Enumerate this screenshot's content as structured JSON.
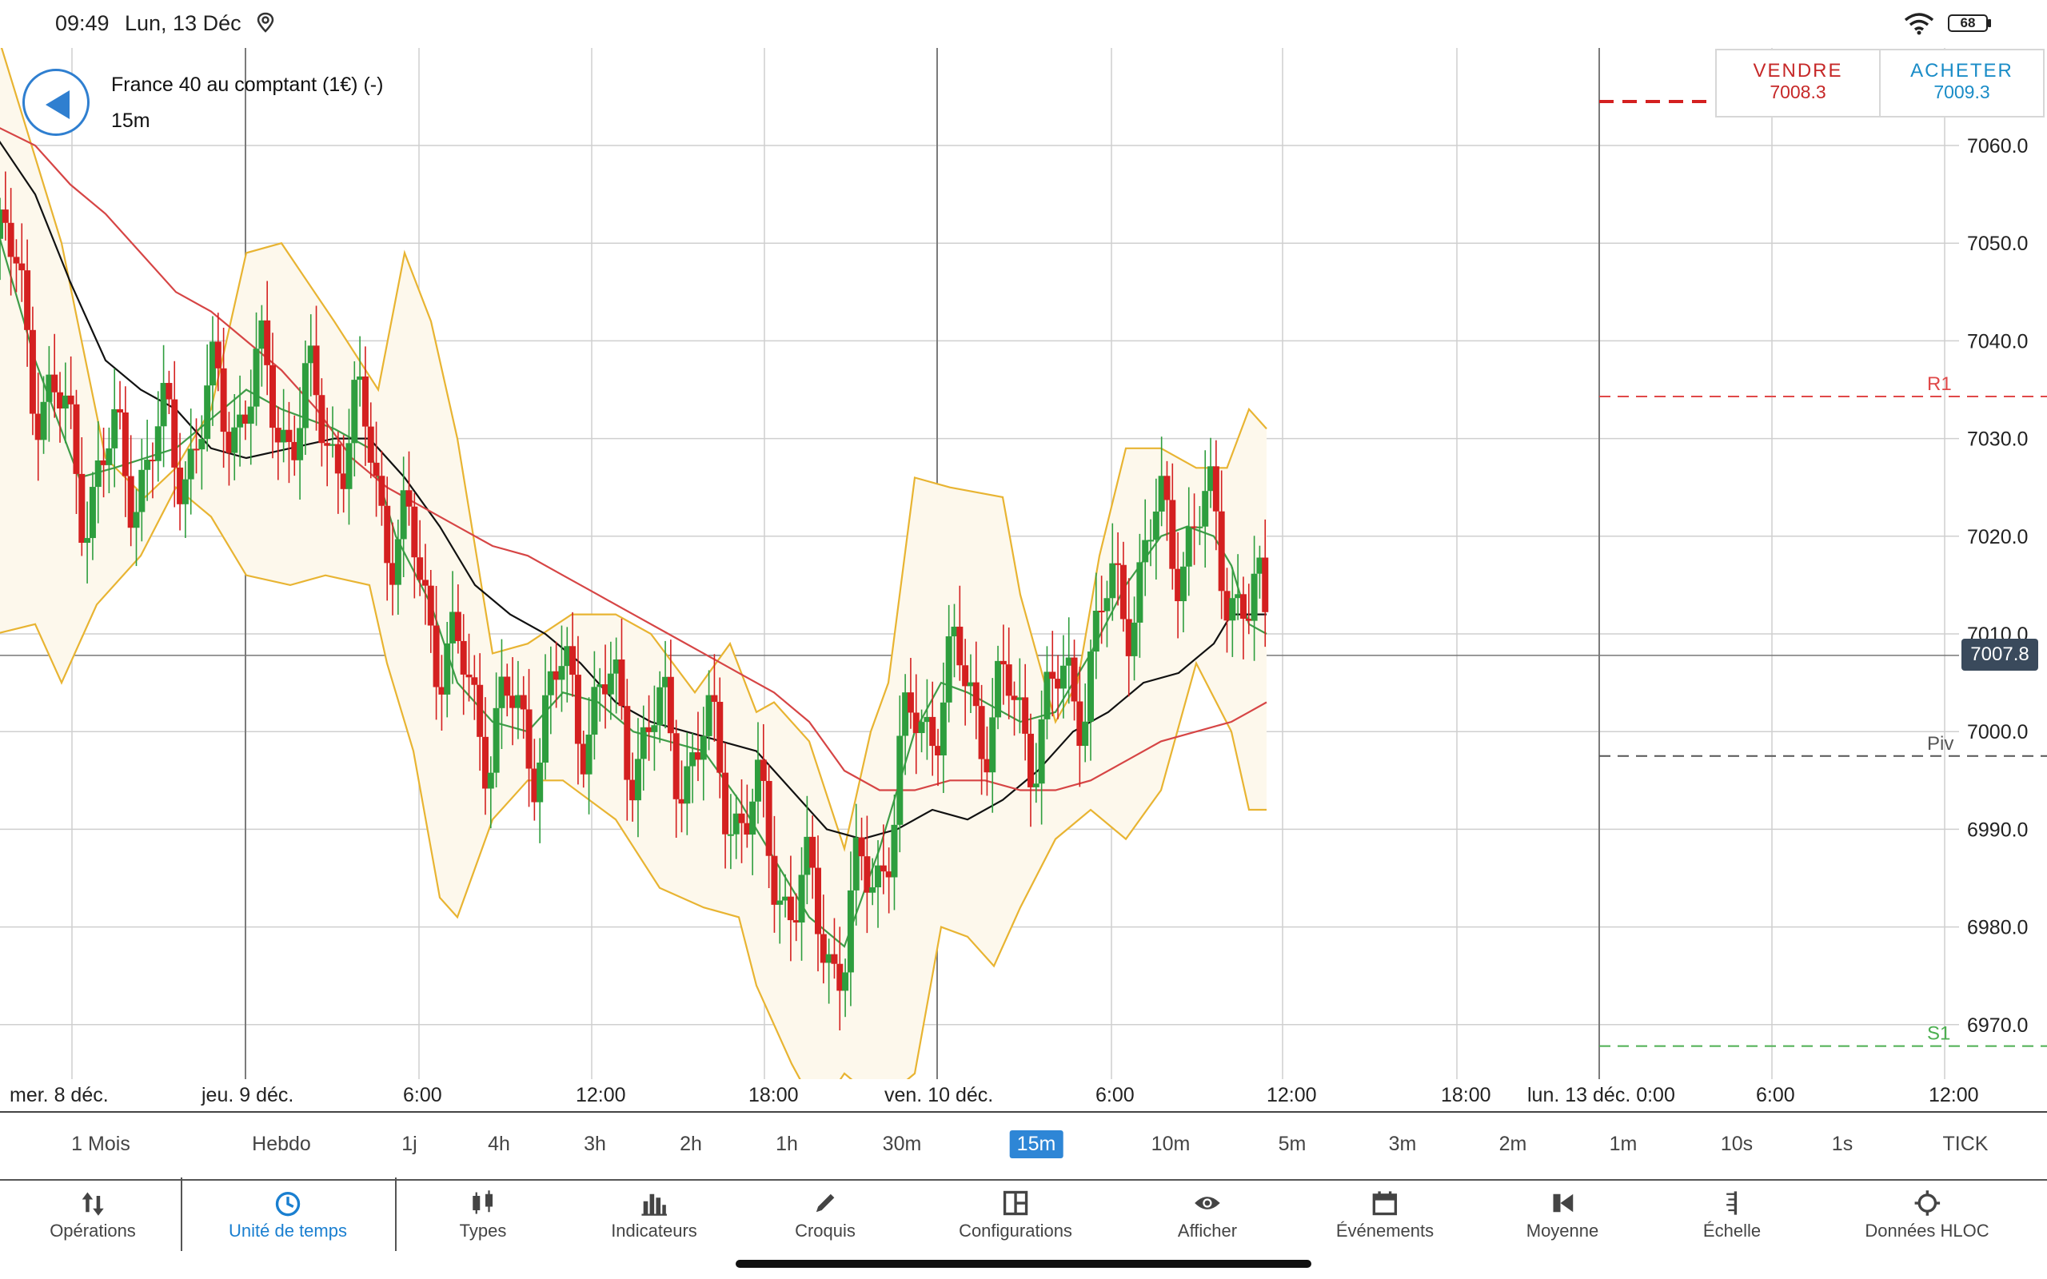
{
  "status_bar": {
    "time": "09:49",
    "date": "Lun, 13 Déc",
    "battery": "68"
  },
  "instrument": {
    "title": "France 40 au comptant (1€) (-)",
    "interval": "15m"
  },
  "trade": {
    "sell_label": "VENDRE",
    "sell_price": "7008.3",
    "buy_label": "ACHETER",
    "buy_price": "7009.3"
  },
  "current_price": "7007.8",
  "colors": {
    "up_candle": "#2e9e3e",
    "down_candle": "#d42020",
    "bollinger": "#e8b432",
    "bollinger_fill": "#fdf8ec",
    "sma_fast": "#3f9c48",
    "sma_black": "#111111",
    "sma_red": "#d64545",
    "resistance": "#e04848",
    "support": "#4caf50",
    "pivot": "#555555",
    "accent": "#2e86d6"
  },
  "chart_data": {
    "type": "candlestick",
    "ylim": [
      6963,
      7070
    ],
    "y_ticks": [
      "7060.0",
      "7050.0",
      "7040.0",
      "7030.0",
      "7020.0",
      "7010.0",
      "7000.0",
      "6990.0",
      "6980.0",
      "6970.0"
    ],
    "x_labels": [
      "mer. 8 déc.",
      "jeu. 9 déc.",
      "6:00",
      "12:00",
      "18:00",
      "ven. 10 déc.",
      "6:00",
      "12:00",
      "18:00",
      "lun. 13 déc. 0:00",
      "6:00",
      "12:00"
    ],
    "levels": [
      {
        "label": "R1",
        "value": 7034.3
      },
      {
        "label": "Piv",
        "value": 6997.5
      },
      {
        "label": "S1",
        "value": 6967.8
      }
    ],
    "sell_level": 7064.5,
    "bid": 7008.3,
    "ask": 7009.3,
    "last": 7007.8,
    "series": [
      {
        "name": "Bollinger upper",
        "values": [
          [
            -5,
            7072
          ],
          [
            70,
            7050
          ],
          [
            120,
            7028
          ],
          [
            165,
            7024
          ],
          [
            200,
            7027
          ],
          [
            240,
            7033
          ],
          [
            280,
            7049
          ],
          [
            320,
            7050
          ],
          [
            380,
            7042
          ],
          [
            430,
            7035
          ],
          [
            460,
            7049
          ],
          [
            490,
            7042
          ],
          [
            520,
            7030
          ],
          [
            560,
            7008
          ],
          [
            600,
            7009
          ],
          [
            650,
            7012
          ],
          [
            700,
            7012
          ],
          [
            740,
            7010
          ],
          [
            790,
            7004
          ],
          [
            830,
            7009
          ],
          [
            860,
            7002
          ],
          [
            880,
            7003
          ],
          [
            920,
            6999
          ],
          [
            960,
            6988
          ],
          [
            990,
            7000
          ],
          [
            1010,
            7005
          ],
          [
            1040,
            7026
          ],
          [
            1080,
            7025
          ],
          [
            1140,
            7024
          ],
          [
            1160,
            7014
          ],
          [
            1200,
            7001
          ],
          [
            1225,
            7005
          ],
          [
            1250,
            7018
          ],
          [
            1280,
            7029
          ],
          [
            1320,
            7029
          ],
          [
            1360,
            7027
          ],
          [
            1395,
            7027
          ],
          [
            1420,
            7033
          ],
          [
            1440,
            7031
          ]
        ]
      },
      {
        "name": "Bollinger lower",
        "values": [
          [
            -5,
            7010
          ],
          [
            40,
            7011
          ],
          [
            70,
            7005
          ],
          [
            110,
            7013
          ],
          [
            160,
            7018
          ],
          [
            200,
            7025
          ],
          [
            240,
            7022
          ],
          [
            280,
            7016
          ],
          [
            330,
            7015
          ],
          [
            370,
            7016
          ],
          [
            420,
            7015
          ],
          [
            440,
            7007
          ],
          [
            470,
            6998
          ],
          [
            500,
            6983
          ],
          [
            520,
            6981
          ],
          [
            560,
            6991
          ],
          [
            600,
            6995
          ],
          [
            640,
            6995
          ],
          [
            700,
            6991
          ],
          [
            750,
            6984
          ],
          [
            800,
            6982
          ],
          [
            840,
            6981
          ],
          [
            860,
            6974
          ],
          [
            900,
            6966
          ],
          [
            930,
            6961
          ],
          [
            960,
            6965
          ],
          [
            1000,
            6962
          ],
          [
            1040,
            6965
          ],
          [
            1070,
            6980
          ],
          [
            1100,
            6979
          ],
          [
            1130,
            6976
          ],
          [
            1160,
            6982
          ],
          [
            1200,
            6989
          ],
          [
            1240,
            6992
          ],
          [
            1280,
            6989
          ],
          [
            1320,
            6994
          ],
          [
            1360,
            7007
          ],
          [
            1400,
            7000
          ],
          [
            1420,
            6992
          ],
          [
            1440,
            6992
          ]
        ]
      },
      {
        "name": "SMA green",
        "values": [
          [
            -5,
            7052
          ],
          [
            40,
            7038
          ],
          [
            90,
            7026
          ],
          [
            130,
            7027
          ],
          [
            200,
            7029
          ],
          [
            240,
            7032
          ],
          [
            280,
            7035
          ],
          [
            320,
            7033
          ],
          [
            380,
            7031
          ],
          [
            420,
            7029
          ],
          [
            450,
            7020
          ],
          [
            490,
            7013
          ],
          [
            520,
            7005
          ],
          [
            560,
            7001
          ],
          [
            600,
            7000
          ],
          [
            640,
            7004
          ],
          [
            680,
            7003
          ],
          [
            720,
            7000
          ],
          [
            760,
            6999
          ],
          [
            800,
            6998
          ],
          [
            840,
            6993
          ],
          [
            880,
            6987
          ],
          [
            920,
            6981
          ],
          [
            960,
            6978
          ],
          [
            1000,
            6988
          ],
          [
            1040,
            7000
          ],
          [
            1070,
            7005
          ],
          [
            1100,
            7004
          ],
          [
            1140,
            7002
          ],
          [
            1160,
            7001
          ],
          [
            1200,
            7002
          ],
          [
            1240,
            7008
          ],
          [
            1280,
            7015
          ],
          [
            1320,
            7020
          ],
          [
            1350,
            7021
          ],
          [
            1380,
            7020
          ],
          [
            1400,
            7017
          ],
          [
            1420,
            7011
          ],
          [
            1440,
            7010
          ]
        ]
      },
      {
        "name": "SMA black",
        "values": [
          [
            -5,
            7061
          ],
          [
            40,
            7055
          ],
          [
            80,
            7046
          ],
          [
            120,
            7038
          ],
          [
            160,
            7035
          ],
          [
            200,
            7033
          ],
          [
            240,
            7029
          ],
          [
            280,
            7028
          ],
          [
            330,
            7029
          ],
          [
            380,
            7030
          ],
          [
            420,
            7030
          ],
          [
            460,
            7026
          ],
          [
            500,
            7021
          ],
          [
            540,
            7015
          ],
          [
            580,
            7012
          ],
          [
            620,
            7010
          ],
          [
            660,
            7007
          ],
          [
            700,
            7003
          ],
          [
            740,
            7001
          ],
          [
            780,
            7000
          ],
          [
            820,
            6999
          ],
          [
            860,
            6998
          ],
          [
            900,
            6994
          ],
          [
            940,
            6990
          ],
          [
            980,
            6989
          ],
          [
            1020,
            6990
          ],
          [
            1060,
            6992
          ],
          [
            1100,
            6991
          ],
          [
            1140,
            6993
          ],
          [
            1180,
            6996
          ],
          [
            1220,
            7000
          ],
          [
            1260,
            7002
          ],
          [
            1300,
            7005
          ],
          [
            1340,
            7006
          ],
          [
            1380,
            7009
          ],
          [
            1400,
            7012
          ],
          [
            1420,
            7012
          ],
          [
            1440,
            7012
          ]
        ]
      },
      {
        "name": "SMA red",
        "values": [
          [
            -5,
            7062
          ],
          [
            40,
            7060
          ],
          [
            80,
            7056
          ],
          [
            120,
            7053
          ],
          [
            160,
            7049
          ],
          [
            200,
            7045
          ],
          [
            240,
            7043
          ],
          [
            280,
            7040
          ],
          [
            320,
            7037
          ],
          [
            360,
            7033
          ],
          [
            400,
            7028
          ],
          [
            440,
            7025
          ],
          [
            480,
            7023
          ],
          [
            520,
            7021
          ],
          [
            560,
            7019
          ],
          [
            600,
            7018
          ],
          [
            640,
            7016
          ],
          [
            680,
            7014
          ],
          [
            720,
            7012
          ],
          [
            760,
            7010
          ],
          [
            800,
            7008
          ],
          [
            840,
            7006
          ],
          [
            880,
            7004
          ],
          [
            920,
            7001
          ],
          [
            960,
            6996
          ],
          [
            1000,
            6994
          ],
          [
            1040,
            6994
          ],
          [
            1080,
            6995
          ],
          [
            1120,
            6995
          ],
          [
            1160,
            6994
          ],
          [
            1200,
            6994
          ],
          [
            1240,
            6995
          ],
          [
            1280,
            6997
          ],
          [
            1320,
            6999
          ],
          [
            1360,
            7000
          ],
          [
            1400,
            7001
          ],
          [
            1420,
            7002
          ],
          [
            1440,
            7003
          ]
        ]
      }
    ]
  },
  "timeframes": [
    {
      "label": "1 Mois"
    },
    {
      "label": "Hebdo"
    },
    {
      "label": "1j"
    },
    {
      "label": "4h"
    },
    {
      "label": "3h"
    },
    {
      "label": "2h"
    },
    {
      "label": "1h"
    },
    {
      "label": "30m"
    },
    {
      "label": "15m",
      "active": true
    },
    {
      "label": "10m"
    },
    {
      "label": "5m"
    },
    {
      "label": "3m"
    },
    {
      "label": "2m"
    },
    {
      "label": "1m"
    },
    {
      "label": "10s"
    },
    {
      "label": "1s"
    },
    {
      "label": "TICK"
    }
  ],
  "toolbar": [
    {
      "label": "Opérations",
      "icon": "operations-icon"
    },
    {
      "label": "Unité de temps",
      "icon": "clock-icon",
      "active": true
    },
    {
      "label": "Types",
      "icon": "candles-icon"
    },
    {
      "label": "Indicateurs",
      "icon": "bar-chart-icon"
    },
    {
      "label": "Croquis",
      "icon": "pencil-icon"
    },
    {
      "label": "Configurations",
      "icon": "layout-icon"
    },
    {
      "label": "Afficher",
      "icon": "eye-icon"
    },
    {
      "label": "Événements",
      "icon": "calendar-icon"
    },
    {
      "label": "Moyenne",
      "icon": "average-icon"
    },
    {
      "label": "Échelle",
      "icon": "scale-icon"
    },
    {
      "label": "Données HLOC",
      "icon": "crosshair-icon"
    }
  ]
}
